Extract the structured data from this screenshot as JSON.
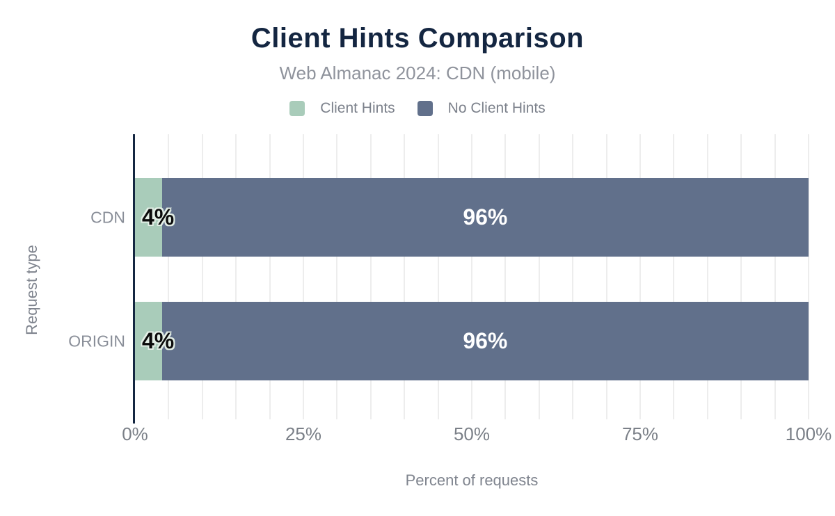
{
  "header": {
    "title": "Client Hints Comparison",
    "subtitle": "Web Almanac 2024: CDN (mobile)"
  },
  "legend": {
    "position": "top",
    "items": [
      {
        "label": "Client Hints",
        "color": "#a9ccba"
      },
      {
        "label": "No Client Hints",
        "color": "#61708b"
      }
    ]
  },
  "chart_data": {
    "type": "bar",
    "orientation": "horizontal",
    "stacked": true,
    "title": "Client Hints Comparison",
    "subtitle": "Web Almanac 2024: CDN (mobile)",
    "categories": [
      "CDN",
      "ORIGIN"
    ],
    "series": [
      {
        "name": "Client Hints",
        "color": "#a9ccba",
        "values": [
          4,
          4
        ],
        "value_labels": [
          "4%",
          "4%"
        ],
        "label_style": "dark",
        "label_align": "start"
      },
      {
        "name": "No Client Hints",
        "color": "#61708b",
        "values": [
          96,
          96
        ],
        "value_labels": [
          "96%",
          "96%"
        ],
        "label_style": "light",
        "label_align": "center"
      }
    ],
    "xlabel": "Percent of requests",
    "ylabel": "Request type",
    "xlim": [
      0,
      100
    ],
    "x_ticks": [
      {
        "value": 0,
        "label": "0%"
      },
      {
        "value": 25,
        "label": "25%"
      },
      {
        "value": 50,
        "label": "50%"
      },
      {
        "value": 75,
        "label": "75%"
      },
      {
        "value": 100,
        "label": "100%"
      }
    ],
    "minor_grid_step": 5,
    "grid": "vertical-minor",
    "legend_position": "top"
  },
  "colors": {
    "background": "#ffffff",
    "title_text": "#142641",
    "muted_text": "#8f939c",
    "tick_text": "#7b8088",
    "axis_line": "#142641",
    "gridline": "#ededed",
    "value_label_dark": "#0c0c0c",
    "value_label_light": "#ffffff"
  }
}
